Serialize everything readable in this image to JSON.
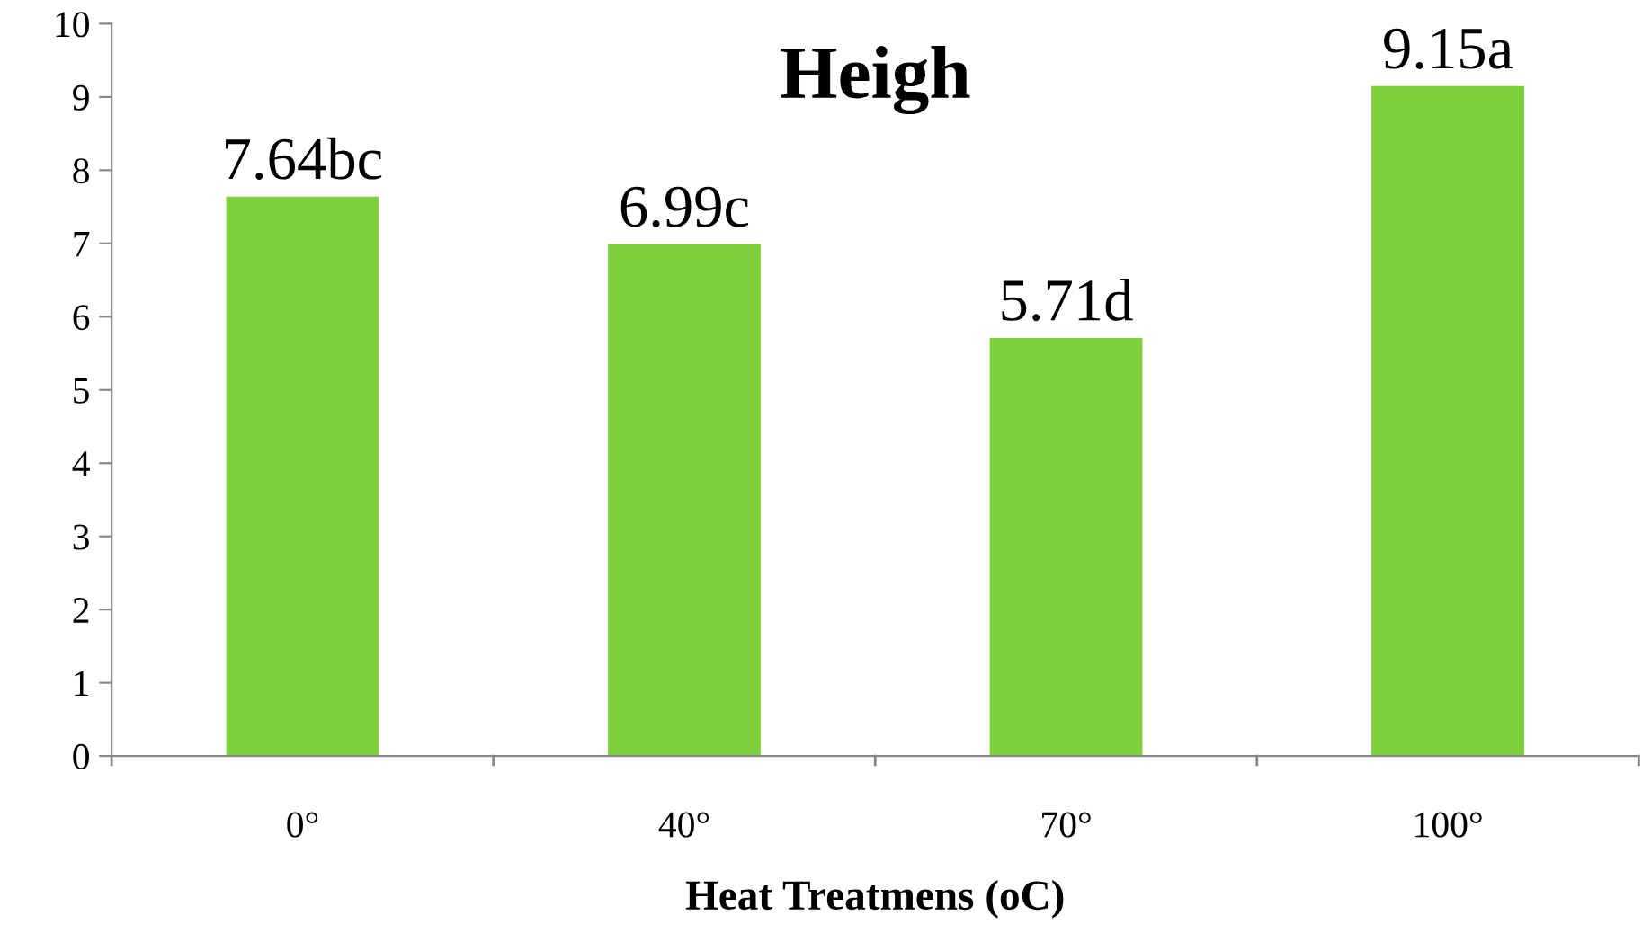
{
  "chart_data": {
    "type": "bar",
    "title": "Heigh",
    "xlabel": "Heat Treatmens (oC)",
    "categories": [
      "0°",
      "40°",
      "70°",
      "100°"
    ],
    "values": [
      7.64,
      6.99,
      5.71,
      9.15
    ],
    "value_labels": [
      "7.64bc",
      "6.99c",
      "5.71d",
      "9.15a"
    ],
    "color": "#7fd13b",
    "ylim": [
      0,
      10
    ],
    "yticks": [
      0,
      1,
      2,
      3,
      4,
      5,
      6,
      7,
      8,
      9,
      10
    ],
    "grid": false,
    "legend": false
  }
}
